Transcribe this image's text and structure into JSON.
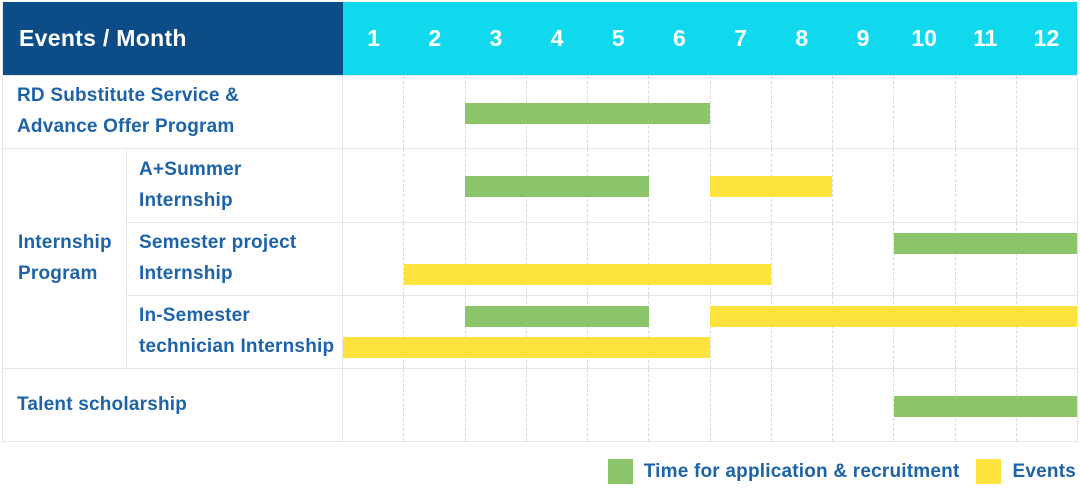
{
  "header": {
    "label": "Events / Month",
    "months": [
      "1",
      "2",
      "3",
      "4",
      "5",
      "6",
      "7",
      "8",
      "9",
      "10",
      "11",
      "12"
    ]
  },
  "group": {
    "label": "Internship Program",
    "lines": [
      "Internship",
      "Program"
    ]
  },
  "legend": {
    "items": [
      {
        "kind": "application",
        "label": "Time for application & recruitment"
      },
      {
        "kind": "event",
        "label": "Events"
      }
    ]
  },
  "colors": {
    "header_blue": "#0d4d87",
    "month_cyan": "#10d9ee",
    "application_green": "#8cc569",
    "event_yellow": "#fee33f",
    "label_text_blue": "#1c63a9"
  },
  "chart_data": {
    "type": "gantt",
    "title": "Events / Month",
    "x_unit": "month",
    "x_range": [
      1,
      12
    ],
    "legend_position": "bottom-right",
    "series_kinds": {
      "application": "Time for application & recruitment",
      "event": "Events"
    },
    "rows": [
      {
        "label": "RD Substitute Service & Advance Offer Program",
        "lines": [
          "RD Substitute Service &",
          "Advance Offer Program"
        ],
        "group": null,
        "bars": [
          {
            "kind": "application",
            "start_month": 3,
            "end_month": 6,
            "lane": "single"
          }
        ]
      },
      {
        "label": "A+Summer Internship",
        "lines": [
          "A+Summer",
          "Internship"
        ],
        "group": "Internship Program",
        "bars": [
          {
            "kind": "application",
            "start_month": 3,
            "end_month": 5,
            "lane": "single"
          },
          {
            "kind": "event",
            "start_month": 7,
            "end_month": 8,
            "lane": "single"
          }
        ]
      },
      {
        "label": "Semester project Internship",
        "lines": [
          "Semester project",
          "Internship"
        ],
        "group": "Internship Program",
        "bars": [
          {
            "kind": "application",
            "start_month": 10,
            "end_month": 12,
            "lane": "top"
          },
          {
            "kind": "event",
            "start_month": 2,
            "end_month": 7,
            "lane": "bottom"
          }
        ]
      },
      {
        "label": "In-Semester technician Internship",
        "lines": [
          "In-Semester",
          "technician Internship"
        ],
        "group": "Internship Program",
        "bars": [
          {
            "kind": "application",
            "start_month": 3,
            "end_month": 5,
            "lane": "top"
          },
          {
            "kind": "event",
            "start_month": 7,
            "end_month": 12,
            "lane": "top"
          },
          {
            "kind": "event",
            "start_month": 1,
            "end_month": 6,
            "lane": "bottom"
          }
        ]
      },
      {
        "label": "Talent scholarship",
        "lines": [
          "Talent scholarship"
        ],
        "group": null,
        "bars": [
          {
            "kind": "application",
            "start_month": 10,
            "end_month": 12,
            "lane": "single"
          }
        ]
      }
    ]
  }
}
